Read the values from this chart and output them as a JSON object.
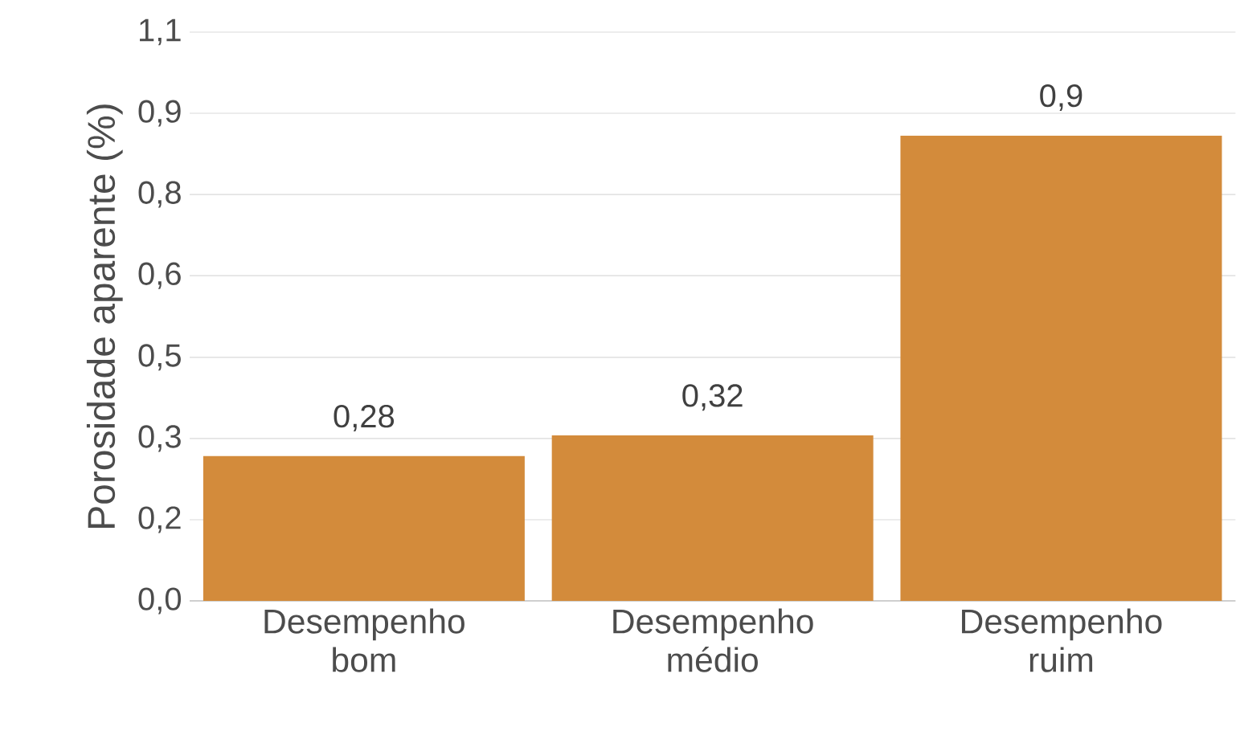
{
  "chart_data": {
    "type": "bar",
    "ylabel": "Porosidade aparente (%)",
    "categories": [
      "Desempenho bom",
      "Desempenho médio",
      "Desempenho ruim"
    ],
    "values": [
      0.28,
      0.32,
      0.9
    ],
    "value_labels": [
      "0,28",
      "0,32",
      "0,9"
    ],
    "color": "#d38b3b",
    "ylim": [
      0,
      1.1
    ],
    "yticks": [
      {
        "value": 0,
        "label": "0,0"
      },
      {
        "value": 0.157,
        "label": "0,2"
      },
      {
        "value": 0.314,
        "label": "0,3"
      },
      {
        "value": 0.471,
        "label": "0,5"
      },
      {
        "value": 0.629,
        "label": "0,6"
      },
      {
        "value": 0.786,
        "label": "0,8"
      },
      {
        "value": 0.943,
        "label": "0,9"
      },
      {
        "value": 1.1,
        "label": "1,1"
      }
    ],
    "grid": "y"
  }
}
